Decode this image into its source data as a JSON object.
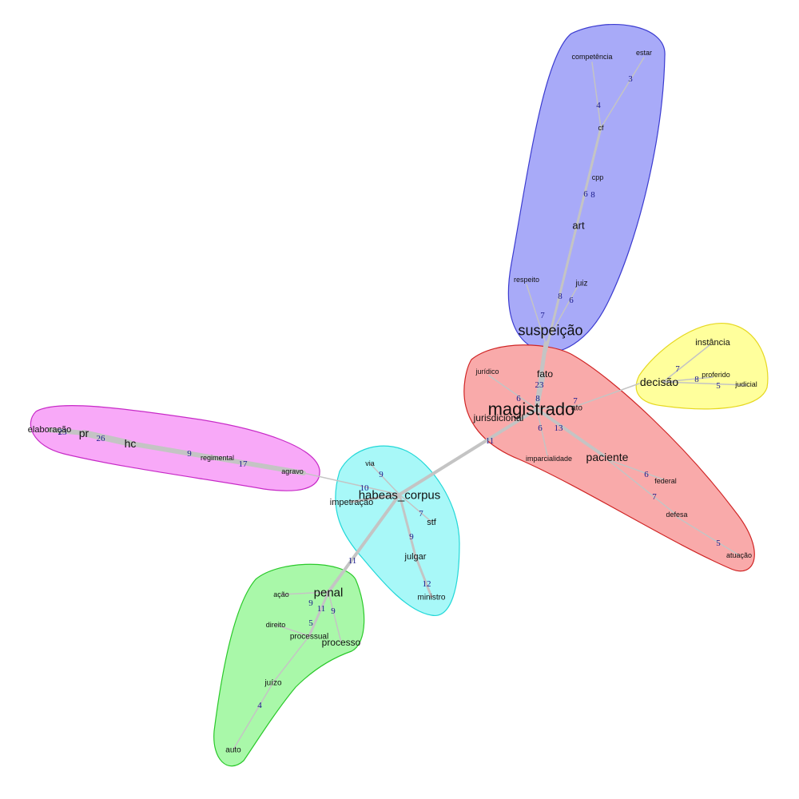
{
  "clusters": [
    {
      "id": "suspeicao",
      "fill": "#a8aaf8",
      "stroke": "#3b3bd0"
    },
    {
      "id": "magistrado",
      "fill": "#f9aaaa",
      "stroke": "#d02525"
    },
    {
      "id": "decisao",
      "fill": "#ffff9c",
      "stroke": "#e6d820"
    },
    {
      "id": "hc",
      "fill": "#f8a9f8",
      "stroke": "#c72ac7"
    },
    {
      "id": "habeas",
      "fill": "#a8f8f8",
      "stroke": "#22d8d8"
    },
    {
      "id": "penal",
      "fill": "#a9f8a9",
      "stroke": "#2ac92a"
    }
  ],
  "words": {
    "suspeicao": "suspeição",
    "competencia": "competência",
    "estar": "estar",
    "cf": "cf",
    "cpp": "cpp",
    "art": "art",
    "respeito": "respeito",
    "juiz": "juiz",
    "magistrado": "magistrado",
    "fato": "fato",
    "juridico": "jurídico",
    "jurisdicional": "jurisdicional",
    "ato": "ato",
    "imparcialidade": "imparcialidade",
    "paciente": "paciente",
    "federal": "federal",
    "defesa": "defesa",
    "atuacao": "atuação",
    "decisao": "decisão",
    "instancia": "instância",
    "proferido": "proferido",
    "judicial": "judicial",
    "elaboracao": "elaboração",
    "pr": "pr",
    "hc": "hc",
    "regimental": "regimental",
    "agravo": "agravo",
    "habeas_corpus": "habeas_corpus",
    "via": "via",
    "impetracao": "impetração",
    "stf": "stf",
    "julgar": "julgar",
    "ministro": "ministro",
    "penal": "penal",
    "acao": "ação",
    "direito": "direito",
    "processual": "processual",
    "processo": "processo",
    "juizo": "juízo",
    "auto": "auto"
  },
  "edges": [
    {
      "from": "suspeicao",
      "to": "cf",
      "weight": ""
    },
    {
      "from": "cf",
      "to": "competencia",
      "weight": "4"
    },
    {
      "from": "cf",
      "to": "estar",
      "weight": "3"
    },
    {
      "from": "suspeicao",
      "to": "respeito",
      "weight": "7"
    },
    {
      "from": "suspeicao",
      "to": "juiz",
      "weight": "6"
    },
    {
      "from": "suspeicao",
      "to": "magistrado",
      "weight": ""
    },
    {
      "from": "magistrado",
      "to": "fato",
      "weight": "23"
    },
    {
      "from": "magistrado",
      "to": "juridico",
      "weight": "6"
    },
    {
      "from": "magistrado",
      "to": "ato",
      "weight": "7"
    },
    {
      "from": "magistrado",
      "to": "imparcialidade",
      "weight": "6"
    },
    {
      "from": "magistrado",
      "to": "paciente",
      "weight": "13"
    },
    {
      "from": "paciente",
      "to": "federal",
      "weight": "6"
    },
    {
      "from": "paciente",
      "to": "defesa",
      "weight": "7"
    },
    {
      "from": "defesa",
      "to": "atuacao",
      "weight": "5"
    },
    {
      "from": "ato",
      "to": "decisao",
      "weight": ""
    },
    {
      "from": "decisao",
      "to": "instancia",
      "weight": "7"
    },
    {
      "from": "decisao",
      "to": "proferido",
      "weight": "8"
    },
    {
      "from": "decisao",
      "to": "judicial",
      "weight": "5"
    },
    {
      "from": "magistrado",
      "to": "habeas_corpus",
      "weight": "11"
    },
    {
      "from": "habeas_corpus",
      "to": "via",
      "weight": "9"
    },
    {
      "from": "habeas_corpus",
      "to": "impetracao",
      "weight": "10"
    },
    {
      "from": "habeas_corpus",
      "to": "stf",
      "weight": "7"
    },
    {
      "from": "habeas_corpus",
      "to": "julgar",
      "weight": "9"
    },
    {
      "from": "julgar",
      "to": "ministro",
      "weight": "12"
    },
    {
      "from": "habeas_corpus",
      "to": "agravo",
      "weight": ""
    },
    {
      "from": "agravo",
      "to": "regimental",
      "weight": "17"
    },
    {
      "from": "agravo",
      "to": "hc",
      "weight": "9"
    },
    {
      "from": "hc",
      "to": "pr",
      "weight": "26"
    },
    {
      "from": "pr",
      "to": "elaboracao",
      "weight": "23"
    },
    {
      "from": "habeas_corpus",
      "to": "penal",
      "weight": "11"
    },
    {
      "from": "penal",
      "to": "acao",
      "weight": "9"
    },
    {
      "from": "penal",
      "to": "processual",
      "weight": "11"
    },
    {
      "from": "penal",
      "to": "processo",
      "weight": "9"
    },
    {
      "from": "processual",
      "to": "direito",
      "weight": "5"
    },
    {
      "from": "processual",
      "to": "juizo",
      "weight": ""
    },
    {
      "from": "juizo",
      "to": "auto",
      "weight": "4"
    }
  ],
  "extra_weights": [
    {
      "id": "cpp",
      "weight": "6"
    },
    {
      "id": "art",
      "weight": "8"
    },
    {
      "id": "juiz",
      "weight": "8"
    },
    {
      "id": "jurisdicional",
      "weight": "8"
    }
  ]
}
